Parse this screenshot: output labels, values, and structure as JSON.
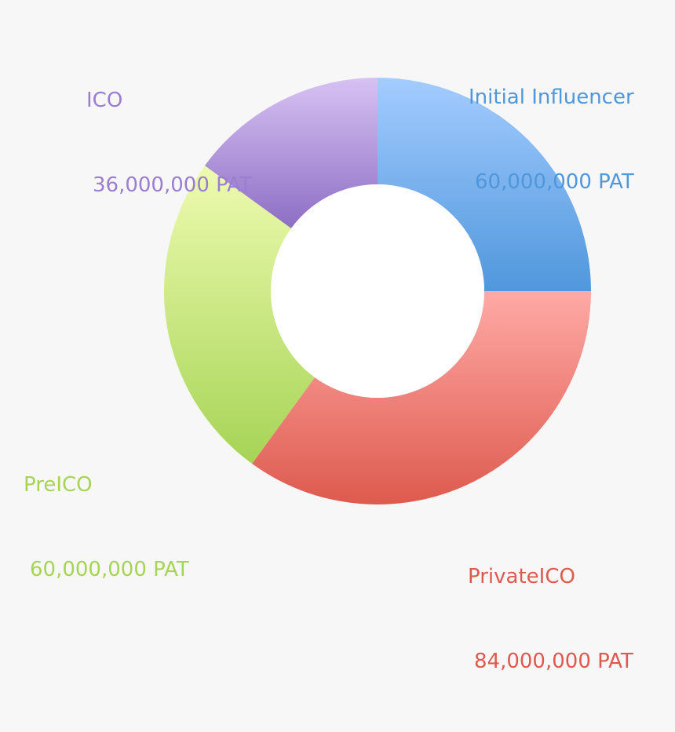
{
  "chart_data": {
    "type": "pie",
    "donut": true,
    "title": "",
    "unit": "PAT",
    "slices": [
      {
        "name": "Initial Influencer",
        "value": 60000000,
        "value_label": "60,000,000 PAT",
        "color_top": "#a4ccff",
        "color_bottom": "#4f97dc",
        "label_color": "#4f97dc"
      },
      {
        "name": "PrivateICO",
        "value": 84000000,
        "value_label": "84,000,000 PAT",
        "color_top": "#ffaaa6",
        "color_bottom": "#dd5a4e",
        "label_color": "#dd5a4e"
      },
      {
        "name": "PreICO",
        "value": 60000000,
        "value_label": "60,000,000 PAT",
        "color_top": "#eefbb0",
        "color_bottom": "#a6d456",
        "label_color": "#a6d456"
      },
      {
        "name": "ICO",
        "value": 36000000,
        "value_label": "36,000,000 PAT",
        "color_top": "#d7c2f3",
        "color_bottom": "#8d6ec4",
        "label_color": "#9a7ed0"
      }
    ]
  }
}
